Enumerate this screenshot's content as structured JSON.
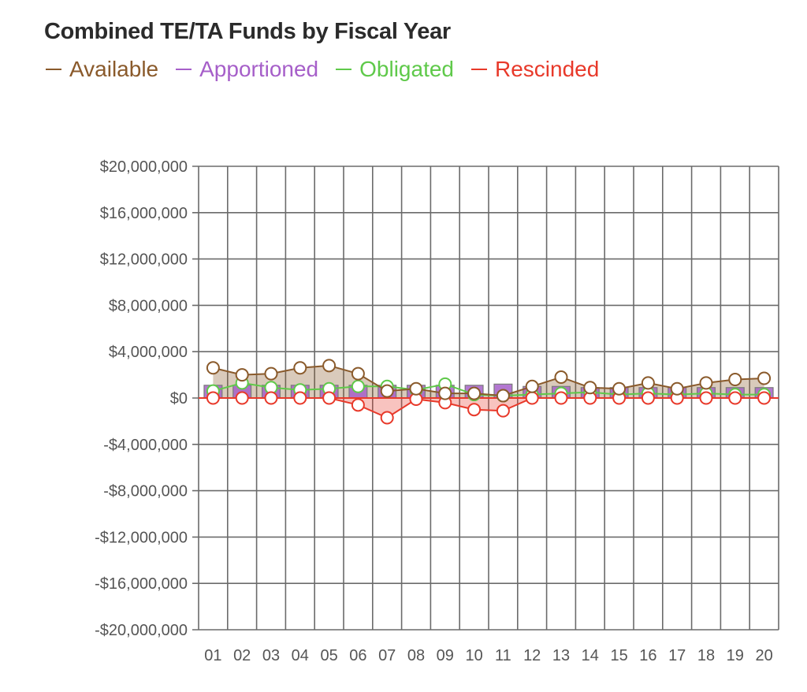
{
  "chart_data": {
    "type": "line",
    "title": "Combined TE/TA Funds by Fiscal Year",
    "categories": [
      "01",
      "02",
      "03",
      "04",
      "05",
      "06",
      "07",
      "08",
      "09",
      "10",
      "11",
      "12",
      "13",
      "14",
      "15",
      "16",
      "17",
      "18",
      "19",
      "20"
    ],
    "ylim": [
      -20000000,
      20000000
    ],
    "yticks": [
      {
        "value": 20000000,
        "label": "$20,000,000"
      },
      {
        "value": 16000000,
        "label": "$16,000,000"
      },
      {
        "value": 12000000,
        "label": "$12,000,000"
      },
      {
        "value": 8000000,
        "label": "$8,000,000"
      },
      {
        "value": 4000000,
        "label": "$4,000,000"
      },
      {
        "value": 0,
        "label": "$0"
      },
      {
        "value": -4000000,
        "label": "-$4,000,000"
      },
      {
        "value": -8000000,
        "label": "-$8,000,000"
      },
      {
        "value": -12000000,
        "label": "-$12,000,000"
      },
      {
        "value": -16000000,
        "label": "-$16,000,000"
      },
      {
        "value": -20000000,
        "label": "-$20,000,000"
      }
    ],
    "grid": true,
    "legend_position": "top-left",
    "series": [
      {
        "name": "Available",
        "key": "available",
        "color": "#8a5a2b",
        "values": [
          2600000,
          2000000,
          2100000,
          2600000,
          2800000,
          2100000,
          600000,
          800000,
          400000,
          400000,
          200000,
          1000000,
          1800000,
          900000,
          800000,
          1300000,
          800000,
          1300000,
          1600000,
          1700000
        ]
      },
      {
        "name": "Apportioned",
        "key": "apportioned",
        "color": "#a65fc9",
        "values": [
          1100000,
          1100000,
          1100000,
          1100000,
          1100000,
          1100000,
          1100000,
          1100000,
          1100000,
          1100000,
          1200000,
          1000000,
          1000000,
          900000,
          900000,
          900000,
          900000,
          900000,
          900000,
          900000
        ]
      },
      {
        "name": "Obligated",
        "key": "obligated",
        "color": "#5fc94a",
        "values": [
          600000,
          1300000,
          900000,
          700000,
          800000,
          1000000,
          1000000,
          700000,
          1200000,
          300000,
          200000,
          300000,
          400000,
          500000,
          300000,
          400000,
          300000,
          400000,
          300000,
          300000
        ]
      },
      {
        "name": "Rescinded",
        "key": "rescinded",
        "color": "#e8392a",
        "values": [
          0,
          0,
          0,
          0,
          0,
          -600000,
          -1700000,
          -100000,
          -400000,
          -1000000,
          -1100000,
          0,
          0,
          0,
          0,
          0,
          0,
          0,
          0,
          0
        ]
      }
    ]
  }
}
